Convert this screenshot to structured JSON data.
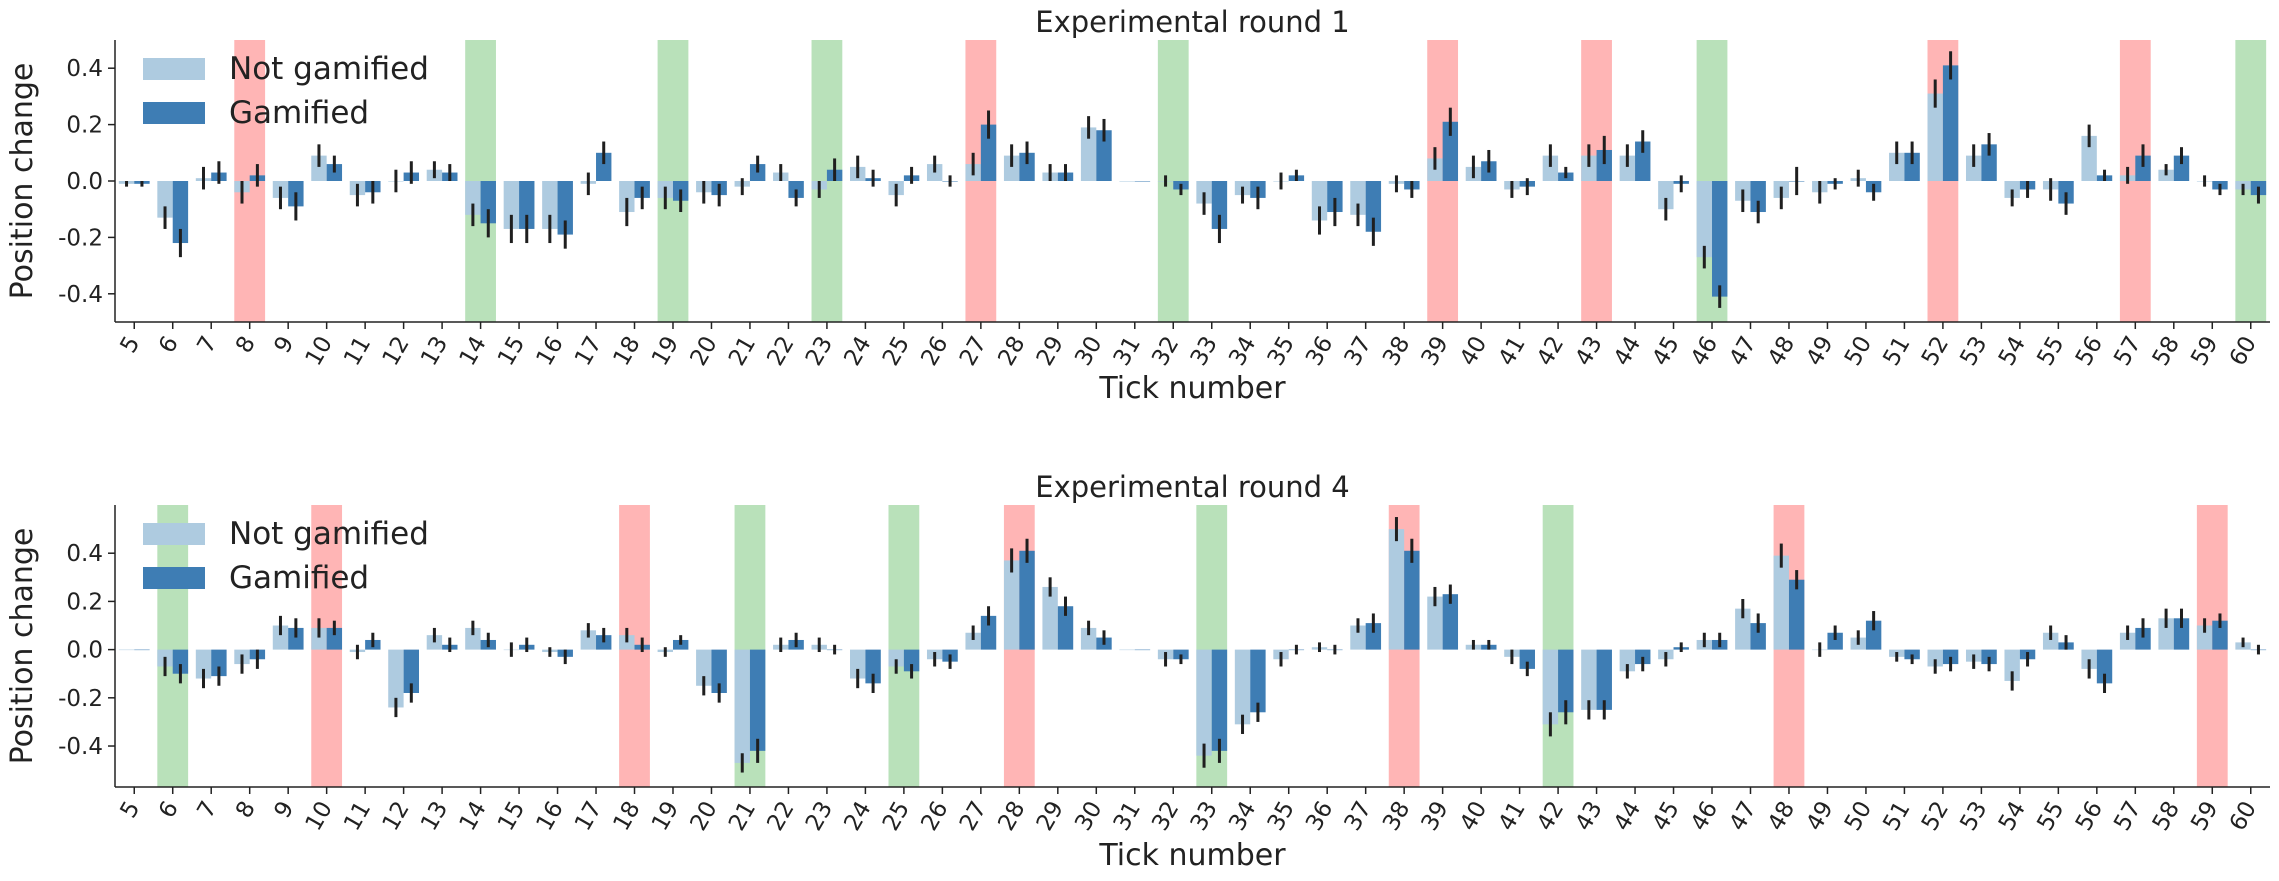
{
  "colors": {
    "not_gamified": "#aecbe0",
    "gamified": "#3e7db4",
    "green_band": "#74c476",
    "red_band": "#ff6b6b",
    "error_bar": "#1f1f1f"
  },
  "legend": {
    "not_gamified": "Not gamified",
    "gamified": "Gamified"
  },
  "chart_data": [
    {
      "type": "bar",
      "title": "Experimental round 1",
      "xlabel": "Tick number",
      "ylabel": "Position change",
      "ylim": [
        -0.5,
        0.5
      ],
      "yticks": [
        -0.4,
        -0.2,
        0.0,
        0.2,
        0.4
      ],
      "legend_position": "top-left",
      "categories": [
        5,
        6,
        7,
        8,
        9,
        10,
        11,
        12,
        13,
        14,
        15,
        16,
        17,
        18,
        19,
        20,
        21,
        22,
        23,
        24,
        25,
        26,
        27,
        28,
        29,
        30,
        31,
        32,
        33,
        34,
        35,
        36,
        37,
        38,
        39,
        40,
        41,
        42,
        43,
        44,
        45,
        46,
        47,
        48,
        49,
        50,
        51,
        52,
        53,
        54,
        55,
        56,
        57,
        58,
        59,
        60
      ],
      "highlights_green": [
        14,
        19,
        23,
        32,
        46,
        60
      ],
      "highlights_red": [
        8,
        27,
        39,
        43,
        52,
        57
      ],
      "series": [
        {
          "name": "Not gamified",
          "color_key": "not_gamified",
          "values": [
            -0.01,
            -0.13,
            0.01,
            -0.04,
            -0.06,
            0.09,
            -0.05,
            0.0,
            0.04,
            -0.12,
            -0.17,
            -0.17,
            -0.01,
            -0.11,
            -0.06,
            -0.04,
            -0.02,
            0.03,
            -0.03,
            0.05,
            -0.05,
            0.06,
            0.06,
            0.09,
            0.03,
            0.19,
            0.0,
            0.0,
            -0.08,
            -0.05,
            0.0,
            -0.14,
            -0.12,
            -0.01,
            0.08,
            0.05,
            -0.03,
            0.09,
            0.09,
            0.09,
            -0.1,
            -0.27,
            -0.07,
            -0.06,
            -0.04,
            0.01,
            0.1,
            0.31,
            0.09,
            -0.06,
            -0.03,
            0.16,
            0.02,
            0.04,
            0.0,
            -0.03
          ],
          "errors": [
            0.01,
            0.04,
            0.04,
            0.04,
            0.04,
            0.04,
            0.04,
            0.04,
            0.03,
            0.04,
            0.05,
            0.05,
            0.04,
            0.05,
            0.04,
            0.04,
            0.03,
            0.03,
            0.03,
            0.04,
            0.04,
            0.03,
            0.04,
            0.04,
            0.03,
            0.04,
            0.0,
            0.02,
            0.04,
            0.03,
            0.03,
            0.05,
            0.04,
            0.03,
            0.04,
            0.04,
            0.03,
            0.04,
            0.04,
            0.04,
            0.04,
            0.04,
            0.04,
            0.04,
            0.04,
            0.03,
            0.04,
            0.05,
            0.04,
            0.03,
            0.04,
            0.04,
            0.03,
            0.02,
            0.02,
            0.02
          ]
        },
        {
          "name": "Gamified",
          "color_key": "gamified",
          "values": [
            -0.01,
            -0.22,
            0.03,
            0.02,
            -0.09,
            0.06,
            -0.04,
            0.03,
            0.03,
            -0.15,
            -0.17,
            -0.19,
            0.1,
            -0.06,
            -0.07,
            -0.05,
            0.06,
            -0.06,
            0.04,
            0.01,
            0.02,
            0.0,
            0.2,
            0.1,
            0.03,
            0.18,
            0.0,
            -0.03,
            -0.17,
            -0.06,
            0.02,
            -0.11,
            -0.18,
            -0.03,
            0.21,
            0.07,
            -0.02,
            0.03,
            0.11,
            0.14,
            -0.01,
            -0.41,
            -0.11,
            0.0,
            -0.01,
            -0.04,
            0.1,
            0.41,
            0.13,
            -0.03,
            -0.08,
            0.02,
            0.09,
            0.09,
            -0.03,
            -0.05
          ],
          "errors": [
            0.01,
            0.05,
            0.04,
            0.04,
            0.05,
            0.03,
            0.04,
            0.04,
            0.03,
            0.05,
            0.05,
            0.05,
            0.04,
            0.04,
            0.04,
            0.04,
            0.03,
            0.03,
            0.04,
            0.03,
            0.03,
            0.02,
            0.05,
            0.04,
            0.03,
            0.04,
            0.0,
            0.02,
            0.05,
            0.04,
            0.02,
            0.05,
            0.05,
            0.03,
            0.05,
            0.04,
            0.03,
            0.02,
            0.05,
            0.04,
            0.03,
            0.04,
            0.04,
            0.05,
            0.02,
            0.03,
            0.04,
            0.05,
            0.04,
            0.03,
            0.04,
            0.02,
            0.04,
            0.03,
            0.02,
            0.03
          ]
        }
      ]
    },
    {
      "type": "bar",
      "title": "Experimental round 4",
      "xlabel": "Tick number",
      "ylabel": "Position change",
      "ylim": [
        -0.57,
        0.6
      ],
      "yticks": [
        -0.4,
        -0.2,
        0.0,
        0.2,
        0.4
      ],
      "legend_position": "top-left",
      "categories": [
        5,
        6,
        7,
        8,
        9,
        10,
        11,
        12,
        13,
        14,
        15,
        16,
        17,
        18,
        19,
        20,
        21,
        22,
        23,
        24,
        25,
        26,
        27,
        28,
        29,
        30,
        31,
        32,
        33,
        34,
        35,
        36,
        37,
        38,
        39,
        40,
        41,
        42,
        43,
        44,
        45,
        46,
        47,
        48,
        49,
        50,
        51,
        52,
        53,
        54,
        55,
        56,
        57,
        58,
        59,
        60
      ],
      "highlights_green": [
        6,
        21,
        25,
        33,
        42
      ],
      "highlights_red": [
        10,
        18,
        28,
        38,
        48,
        59
      ],
      "series": [
        {
          "name": "Not gamified",
          "color_key": "not_gamified",
          "values": [
            0.0,
            -0.07,
            -0.12,
            -0.06,
            0.1,
            0.09,
            -0.01,
            -0.24,
            0.06,
            0.09,
            0.0,
            -0.01,
            0.08,
            0.06,
            -0.01,
            -0.15,
            -0.47,
            0.02,
            0.02,
            -0.12,
            -0.07,
            -0.04,
            0.07,
            0.37,
            0.26,
            0.09,
            0.0,
            -0.04,
            -0.44,
            -0.31,
            -0.04,
            0.01,
            0.1,
            0.5,
            0.22,
            0.02,
            -0.03,
            -0.31,
            -0.25,
            -0.09,
            -0.04,
            0.04,
            0.17,
            0.39,
            0.0,
            0.05,
            -0.03,
            -0.07,
            -0.05,
            -0.13,
            0.07,
            -0.08,
            0.07,
            0.13,
            0.1,
            0.03
          ],
          "errors": [
            0.0,
            0.04,
            0.04,
            0.04,
            0.04,
            0.04,
            0.03,
            0.04,
            0.03,
            0.03,
            0.03,
            0.02,
            0.03,
            0.03,
            0.02,
            0.04,
            0.04,
            0.03,
            0.03,
            0.04,
            0.03,
            0.03,
            0.03,
            0.05,
            0.04,
            0.03,
            0.0,
            0.03,
            0.05,
            0.04,
            0.03,
            0.02,
            0.03,
            0.05,
            0.04,
            0.02,
            0.03,
            0.05,
            0.04,
            0.03,
            0.03,
            0.03,
            0.04,
            0.05,
            0.03,
            0.03,
            0.02,
            0.03,
            0.03,
            0.04,
            0.03,
            0.04,
            0.03,
            0.04,
            0.03,
            0.02
          ]
        },
        {
          "name": "Gamified",
          "color_key": "gamified",
          "values": [
            0.0,
            -0.1,
            -0.11,
            -0.04,
            0.09,
            0.09,
            0.04,
            -0.18,
            0.02,
            0.04,
            0.02,
            -0.03,
            0.06,
            0.02,
            0.04,
            -0.18,
            -0.42,
            0.04,
            0.0,
            -0.14,
            -0.09,
            -0.05,
            0.14,
            0.41,
            0.18,
            0.05,
            0.0,
            -0.04,
            -0.42,
            -0.26,
            0.0,
            0.0,
            0.11,
            0.41,
            0.23,
            0.02,
            -0.08,
            -0.26,
            -0.25,
            -0.06,
            0.01,
            0.04,
            0.11,
            0.29,
            0.07,
            0.12,
            -0.04,
            -0.06,
            -0.06,
            -0.04,
            0.03,
            -0.14,
            0.09,
            0.13,
            0.12,
            0.0
          ],
          "errors": [
            0.0,
            0.04,
            0.04,
            0.04,
            0.04,
            0.03,
            0.03,
            0.04,
            0.03,
            0.03,
            0.03,
            0.03,
            0.03,
            0.03,
            0.02,
            0.04,
            0.05,
            0.03,
            0.02,
            0.04,
            0.03,
            0.03,
            0.04,
            0.05,
            0.04,
            0.03,
            0.0,
            0.02,
            0.05,
            0.04,
            0.02,
            0.02,
            0.04,
            0.05,
            0.04,
            0.02,
            0.03,
            0.05,
            0.04,
            0.03,
            0.02,
            0.03,
            0.04,
            0.04,
            0.03,
            0.04,
            0.02,
            0.03,
            0.03,
            0.03,
            0.03,
            0.04,
            0.04,
            0.04,
            0.03,
            0.02
          ]
        }
      ]
    }
  ]
}
